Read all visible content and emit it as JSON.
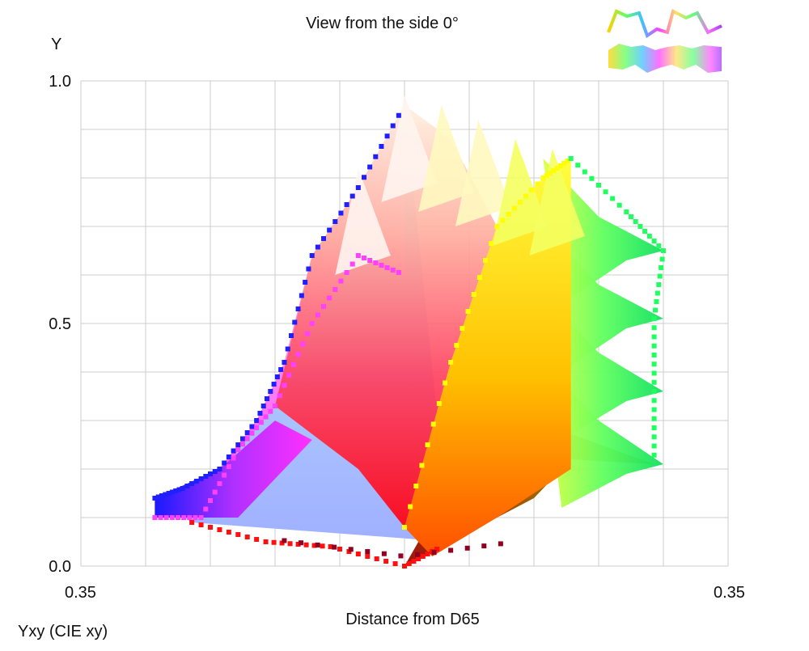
{
  "chart_data": {
    "type": "scatter",
    "title": "View from the side 0°",
    "xlabel": "Distance from D65",
    "ylabel": "Y",
    "color_space_label": "Yxy (CIE xy)",
    "x_tick_labels": [
      "0.35",
      "0.35"
    ],
    "y_ticks": [
      0.0,
      0.5,
      1.0
    ],
    "y_tick_labels": [
      "0.0",
      "0.5",
      "1.0"
    ],
    "xlim": [
      -0.35,
      0.35
    ],
    "ylim": [
      0.0,
      1.0
    ],
    "grid": true,
    "view": "side projection of RGB gamut in CIE xyY",
    "series": [
      {
        "color": "#2020ff",
        "points": [
          [
            -0.27,
            0.14
          ],
          [
            -0.24,
            0.16
          ],
          [
            -0.2,
            0.2
          ],
          [
            -0.16,
            0.3
          ],
          [
            -0.13,
            0.42
          ],
          [
            -0.1,
            0.64
          ],
          [
            -0.05,
            0.78
          ],
          [
            0.0,
            0.95
          ]
        ]
      },
      {
        "color": "#ff40ff",
        "points": [
          [
            -0.27,
            0.1
          ],
          [
            -0.22,
            0.1
          ],
          [
            -0.18,
            0.24
          ],
          [
            -0.14,
            0.33
          ],
          [
            -0.1,
            0.5
          ],
          [
            -0.05,
            0.64
          ],
          [
            0.0,
            0.6
          ]
        ]
      },
      {
        "color": "#ff1010",
        "points": [
          [
            -0.23,
            0.09
          ],
          [
            -0.15,
            0.05
          ],
          [
            -0.08,
            0.04
          ],
          [
            0.0,
            0.0
          ],
          [
            0.04,
            0.04
          ]
        ]
      },
      {
        "color": "#ffff00",
        "points": [
          [
            0.0,
            0.08
          ],
          [
            0.05,
            0.42
          ],
          [
            0.1,
            0.7
          ],
          [
            0.15,
            0.8
          ],
          [
            0.18,
            0.84
          ]
        ]
      },
      {
        "color": "#20ff60",
        "points": [
          [
            0.18,
            0.84
          ],
          [
            0.24,
            0.73
          ],
          [
            0.28,
            0.65
          ],
          [
            0.27,
            0.51
          ],
          [
            0.27,
            0.36
          ],
          [
            0.27,
            0.21
          ]
        ]
      }
    ]
  },
  "legend": {
    "swatch_1": "rainbow gamut outline",
    "swatch_2": "rainbow gamut band"
  },
  "colors": {
    "grid": "#cccccc",
    "axis": "#bbbbbb"
  }
}
